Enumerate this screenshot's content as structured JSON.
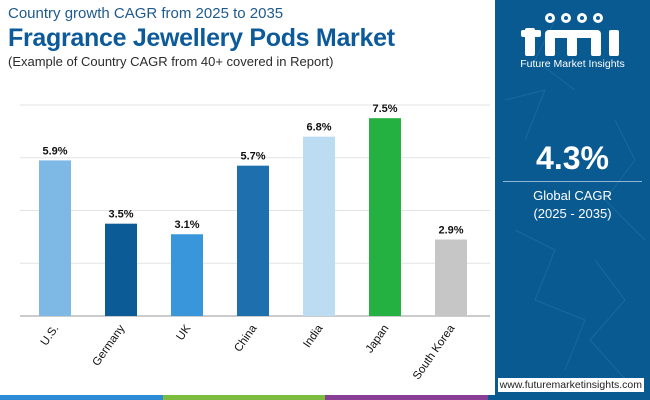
{
  "header": {
    "subtitle": "Country growth CAGR from 2025 to 2035",
    "title": "Fragrance Jewellery Pods Market",
    "note": "(Example of Country CAGR from 40+ covered in Report)"
  },
  "chart_data": {
    "type": "bar",
    "title": "Fragrance Jewellery Pods Market",
    "subtitle": "Country growth CAGR from 2025 to 2035",
    "categories": [
      "U.S.",
      "Germany",
      "UK",
      "China",
      "India",
      "Japan",
      "South Korea"
    ],
    "values": [
      5.9,
      3.5,
      3.1,
      5.7,
      6.8,
      7.5,
      2.9
    ],
    "value_labels": [
      "5.9%",
      "3.5%",
      "3.1%",
      "5.7%",
      "6.8%",
      "7.5%",
      "2.9%"
    ],
    "colors": [
      "#7db9e4",
      "#0b5c96",
      "#3a96da",
      "#1d70ad",
      "#bcdcf1",
      "#25b042",
      "#c6c6c6"
    ],
    "ylim": [
      0,
      8
    ],
    "gridlines": [
      0,
      2,
      4,
      6,
      8
    ],
    "xlabel": "",
    "ylabel": ""
  },
  "sidebar": {
    "brand": "Future Market Insights",
    "kpi_value": "4.3%",
    "kpi_label": "Global CAGR",
    "kpi_period": "(2025 - 2035)"
  },
  "footer": {
    "url": "www.futuremarketinsights.com",
    "bar_colors": [
      "#2e8bd6",
      "#7cbd3f",
      "#8a3f96",
      "#0a5a92"
    ]
  },
  "icons": {
    "logo": "fmi-logo-icon"
  }
}
